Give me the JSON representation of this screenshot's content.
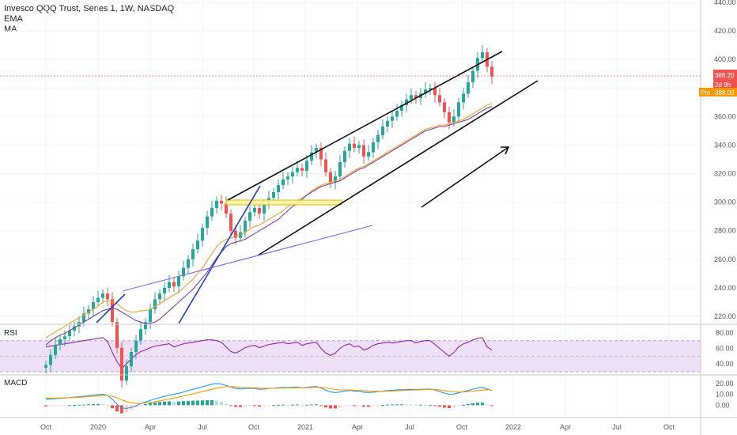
{
  "header": {
    "title": "Invesco QQQ Trust, Series 1, 1W, NASDAQ",
    "ind1": "EMA",
    "ind2": "MA"
  },
  "price_tags": {
    "last": "388.20",
    "countdown": "2d 9h",
    "pre_label": "Pre",
    "pre_value": "388.00"
  },
  "colors": {
    "up": "#26a69a",
    "down": "#ef5350",
    "ema": "#f0a030",
    "ma": "#7b3fa0",
    "rsi": "#8e24aa",
    "macd": "#2196f3",
    "signal": "#ff9800",
    "accent_pre": "#ff9800"
  },
  "chart_data": [
    {
      "type": "candlestick",
      "title": "Invesco QQQ Trust, Series 1, 1W, NASDAQ",
      "y_ticks": [
        220,
        240,
        260,
        280,
        300,
        320,
        340,
        360,
        380,
        400,
        420,
        440
      ],
      "y_tick_labels": [
        "220.00",
        "240.00",
        "260.00",
        "280.00",
        "300.00",
        "320.00",
        "340.00",
        "360.00",
        "380.00",
        "400.00",
        "420.00",
        "440.00"
      ],
      "ylim": [
        215,
        442
      ],
      "x_tick_labels": [
        "Oct",
        "2020",
        "Apr",
        "Jul",
        "Oct",
        "2021",
        "Apr",
        "Jul",
        "Oct",
        "2022",
        "Apr",
        "Jul",
        "Oct"
      ],
      "last_price": 388.2,
      "close": [
        186,
        193,
        200,
        204,
        206,
        210,
        213,
        216,
        222,
        225,
        230,
        233,
        236,
        232,
        216,
        198,
        175,
        185,
        195,
        203,
        211,
        216,
        225,
        232,
        236,
        240,
        244,
        241,
        248,
        254,
        260,
        267,
        273,
        282,
        290,
        296,
        301,
        299,
        292,
        280,
        275,
        279,
        287,
        293,
        296,
        292,
        298,
        303,
        307,
        312,
        316,
        318,
        321,
        324,
        322,
        329,
        335,
        338,
        330,
        321,
        314,
        318,
        328,
        336,
        341,
        338,
        340,
        332,
        335,
        342,
        347,
        353,
        357,
        360,
        364,
        368,
        372,
        375,
        373,
        376,
        379,
        380,
        375,
        370,
        363,
        356,
        360,
        370,
        376,
        384,
        392,
        401,
        405,
        395,
        388
      ],
      "ema": [
        205,
        207,
        209,
        211,
        213,
        215,
        217,
        219,
        221,
        223,
        225,
        227,
        230,
        231,
        230,
        229,
        226,
        224,
        223,
        223,
        224,
        224,
        225,
        227,
        229,
        231,
        233,
        235,
        237,
        240,
        243,
        246,
        250,
        254,
        259,
        264,
        269,
        272,
        274,
        275,
        276,
        277,
        279,
        281,
        283,
        284,
        286,
        288,
        290,
        292,
        294,
        297,
        299,
        301,
        303,
        305,
        308,
        310,
        312,
        313,
        314,
        315,
        316,
        318,
        320,
        322,
        324,
        325,
        327,
        329,
        331,
        333,
        335,
        337,
        339,
        341,
        343,
        345,
        347,
        349,
        351,
        352,
        353,
        354,
        354,
        355,
        356,
        357,
        358,
        360,
        362,
        364,
        366,
        368,
        369
      ],
      "ma": [
        200,
        203,
        205,
        207,
        208,
        210,
        212,
        214,
        216,
        218,
        220,
        222,
        224,
        225,
        226,
        225,
        223,
        221,
        219,
        217,
        216,
        215,
        215,
        216,
        218,
        221,
        224,
        227,
        230,
        233,
        236,
        239,
        243,
        247,
        251,
        256,
        261,
        265,
        269,
        271,
        272,
        273,
        274,
        276,
        278,
        280,
        282,
        284,
        286,
        288,
        291,
        294,
        297,
        299,
        302,
        305,
        307,
        309,
        311,
        312,
        313,
        314,
        315,
        317,
        319,
        321,
        323,
        324,
        326,
        328,
        330,
        332,
        334,
        336,
        338,
        340,
        342,
        344,
        346,
        348,
        350,
        351,
        352,
        353,
        353,
        354,
        355,
        356,
        357,
        358,
        360,
        362,
        364,
        366,
        367
      ]
    },
    {
      "type": "line",
      "title": "RSI",
      "y_tick_labels": [
        "80.00",
        "60.00",
        "40.00"
      ],
      "ylim": [
        30,
        85
      ],
      "band": [
        30,
        70
      ],
      "values": [
        62,
        63,
        64,
        65,
        66,
        67,
        68,
        69,
        70,
        71,
        72,
        73,
        74,
        69,
        55,
        43,
        34,
        40,
        47,
        52,
        56,
        58,
        61,
        63,
        64,
        65,
        66,
        62,
        64,
        66,
        67,
        68,
        69,
        70,
        71,
        71,
        70,
        68,
        62,
        56,
        54,
        57,
        61,
        63,
        64,
        61,
        63,
        65,
        66,
        67,
        68,
        66,
        67,
        68,
        64,
        66,
        67,
        68,
        60,
        54,
        51,
        54,
        60,
        64,
        66,
        62,
        63,
        58,
        60,
        64,
        66,
        67,
        68,
        67,
        68,
        69,
        70,
        70,
        67,
        69,
        70,
        70,
        65,
        60,
        55,
        50,
        55,
        62,
        66,
        68,
        71,
        73,
        74,
        62,
        58
      ]
    },
    {
      "type": "line",
      "title": "MACD",
      "y_tick_labels": [
        "20.00",
        "10.00",
        "0.00"
      ],
      "ylim": [
        -7,
        25
      ],
      "macd": [
        5.5,
        5.8,
        6.0,
        6.3,
        6.6,
        7.0,
        7.4,
        7.8,
        8.2,
        8.8,
        9.3,
        9.8,
        10.1,
        9.0,
        5.5,
        1.0,
        -2.5,
        -3.0,
        -2.0,
        -0.5,
        1.5,
        3.0,
        4.5,
        5.8,
        7.0,
        8.2,
        9.3,
        10.0,
        11.0,
        12.2,
        13.4,
        14.6,
        15.8,
        17.0,
        18.2,
        19.4,
        20.0,
        19.5,
        18.2,
        16.8,
        15.5,
        15.0,
        15.3,
        15.6,
        15.4,
        14.6,
        14.8,
        15.3,
        15.7,
        16.1,
        16.4,
        16.3,
        16.5,
        16.8,
        16.2,
        16.6,
        17.0,
        17.3,
        15.8,
        13.9,
        12.2,
        11.6,
        12.2,
        13.0,
        13.6,
        13.0,
        13.0,
        12.0,
        11.7,
        12.0,
        12.5,
        13.0,
        13.5,
        13.8,
        14.1,
        14.3,
        14.4,
        14.6,
        14.5,
        14.7,
        14.8,
        14.9,
        14.0,
        12.6,
        11.2,
        10.1,
        10.3,
        11.4,
        12.6,
        13.6,
        14.8,
        15.9,
        16.5,
        15.0,
        13.6
      ],
      "signal": [
        6.5,
        6.5,
        6.6,
        6.7,
        6.8,
        6.9,
        7.1,
        7.3,
        7.6,
        7.9,
        8.2,
        8.6,
        9.0,
        9.0,
        8.3,
        6.8,
        4.9,
        3.4,
        2.3,
        1.7,
        1.7,
        2.0,
        2.5,
        3.2,
        4.0,
        4.8,
        5.7,
        6.6,
        7.5,
        8.4,
        9.4,
        10.4,
        11.5,
        12.5,
        13.6,
        14.7,
        15.8,
        16.5,
        17.0,
        17.2,
        17.0,
        16.6,
        16.3,
        16.1,
        16.0,
        15.8,
        15.6,
        15.6,
        15.6,
        15.7,
        15.8,
        15.9,
        16.0,
        16.1,
        16.2,
        16.2,
        16.3,
        16.5,
        16.4,
        15.9,
        15.2,
        14.6,
        14.2,
        14.1,
        14.0,
        13.8,
        13.7,
        13.4,
        13.1,
        12.9,
        12.8,
        12.8,
        12.9,
        13.1,
        13.3,
        13.5,
        13.7,
        13.9,
        14.0,
        14.2,
        14.4,
        14.5,
        14.4,
        14.0,
        13.4,
        12.8,
        12.3,
        12.1,
        12.2,
        12.5,
        13.0,
        13.5,
        14.0,
        14.2,
        14.1
      ]
    }
  ]
}
